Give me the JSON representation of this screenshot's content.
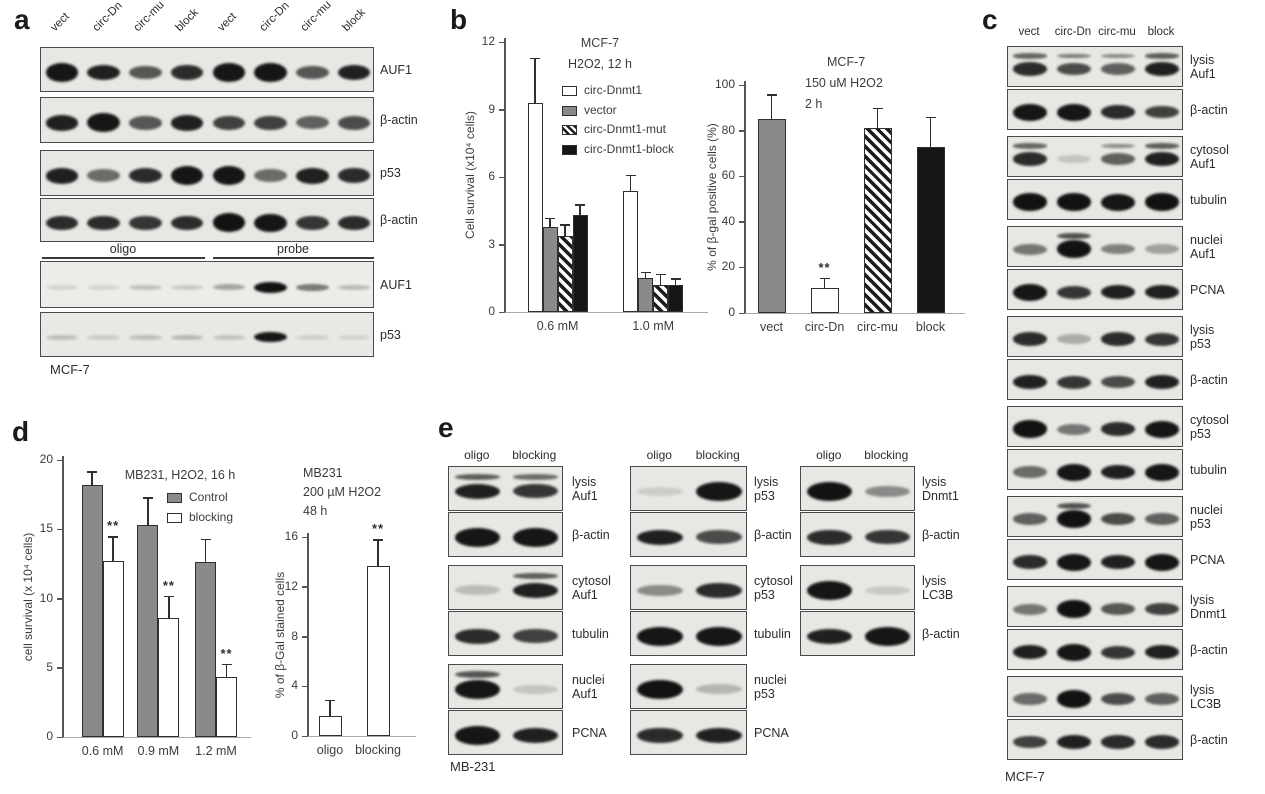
{
  "colors": {
    "blot_bg": "#e8e7e3",
    "blot_bg_light": "#edece8",
    "band": "#121212",
    "bar_gray": "#8a8a8a",
    "bar_black": "#161616",
    "axis": "#555555",
    "text": "#3b3b3b"
  },
  "panels": {
    "a": {
      "letter": "a",
      "lane_labels": [
        "vect",
        "circ-Dn",
        "circ-mu",
        "block",
        "vect",
        "circ-Dn",
        "circ-mu",
        "block"
      ],
      "blots": [
        {
          "label": "AUF1",
          "bands": [
            0.9,
            0.85,
            0.6,
            0.8,
            0.9,
            0.9,
            0.6,
            0.85
          ]
        },
        {
          "label": "β-actin",
          "bands": [
            0.85,
            0.9,
            0.6,
            0.85,
            0.7,
            0.7,
            0.55,
            0.65
          ]
        },
        {
          "label": "p53",
          "bands": [
            0.85,
            0.5,
            0.8,
            0.9,
            0.9,
            0.5,
            0.85,
            0.8
          ]
        },
        {
          "label": "β-actin",
          "bands": [
            0.8,
            0.8,
            0.75,
            0.8,
            0.95,
            0.9,
            0.75,
            0.8
          ]
        }
      ],
      "group_labels": [
        "oligo",
        "probe"
      ],
      "pulldown_blots": [
        {
          "label": "AUF1",
          "bands": [
            0.03,
            0.03,
            0.12,
            0.08,
            0.25,
            0.95,
            0.45,
            0.15
          ],
          "thin": true,
          "bg": "#edece8"
        },
        {
          "label": "p53",
          "bands": [
            0.12,
            0.06,
            0.12,
            0.15,
            0.1,
            0.9,
            0.04,
            0.02
          ],
          "thin": true,
          "bg": "#eae8e4"
        }
      ],
      "cell_line": "MCF-7"
    },
    "b": {
      "letter": "b"
    },
    "c": {
      "letter": "c",
      "lane_labels": [
        "vect",
        "circ-Dn",
        "circ-mu",
        "block"
      ],
      "blots": [
        {
          "label_lines": [
            "lysis",
            "Auf1"
          ],
          "bands": [
            0.8,
            0.65,
            0.55,
            0.85
          ],
          "doublet": true
        },
        {
          "label_lines": [
            "β-actin"
          ],
          "bands": [
            0.9,
            0.9,
            0.8,
            0.7
          ]
        },
        {
          "label_lines": [
            "cytosol",
            "Auf1"
          ],
          "bands": [
            0.8,
            0.08,
            0.55,
            0.85
          ],
          "doublet": [
            0,
            2,
            3
          ]
        },
        {
          "label_lines": [
            "tubulin"
          ],
          "bands": [
            0.95,
            0.95,
            0.9,
            0.95
          ]
        },
        {
          "label_lines": [
            "nuclei",
            "Auf1"
          ],
          "bands": [
            0.45,
            0.95,
            0.4,
            0.25
          ],
          "doublet": [
            1
          ]
        },
        {
          "label_lines": [
            "PCNA"
          ],
          "bands": [
            0.9,
            0.75,
            0.85,
            0.85
          ]
        },
        {
          "label_lines": [
            "lysis",
            "p53"
          ],
          "bands": [
            0.8,
            0.2,
            0.8,
            0.75
          ]
        },
        {
          "label_lines": [
            "β-actin"
          ],
          "bands": [
            0.85,
            0.75,
            0.65,
            0.85
          ]
        },
        {
          "label_lines": [
            "cytosol",
            "p53"
          ],
          "bands": [
            0.95,
            0.45,
            0.8,
            0.9
          ]
        },
        {
          "label_lines": [
            "tubulin"
          ],
          "bands": [
            0.5,
            0.9,
            0.85,
            0.9
          ]
        },
        {
          "label_lines": [
            "nuclei",
            "p53"
          ],
          "bands": [
            0.55,
            0.95,
            0.65,
            0.55
          ],
          "doublet": [
            1
          ]
        },
        {
          "label_lines": [
            "PCNA"
          ],
          "bands": [
            0.8,
            0.9,
            0.85,
            0.9
          ]
        },
        {
          "label_lines": [
            "lysis",
            "Dnmt1"
          ],
          "bands": [
            0.45,
            0.95,
            0.6,
            0.7
          ]
        },
        {
          "label_lines": [
            "β-actin"
          ],
          "bands": [
            0.85,
            0.9,
            0.75,
            0.85
          ]
        },
        {
          "label_lines": [
            "lysis",
            "LC3B"
          ],
          "bands": [
            0.5,
            0.95,
            0.65,
            0.55
          ]
        },
        {
          "label_lines": [
            "β-actin"
          ],
          "bands": [
            0.7,
            0.85,
            0.8,
            0.8
          ]
        }
      ],
      "cell_line": "MCF-7"
    },
    "d": {
      "letter": "d"
    },
    "e": {
      "letter": "e",
      "columns": [
        {
          "lane_labels": [
            "oligo",
            "blocking"
          ],
          "cell_line": "MB-231",
          "blots": [
            {
              "label_lines": [
                "lysis",
                "Auf1"
              ],
              "bands": [
                0.85,
                0.75
              ],
              "doublet": true
            },
            {
              "label_lines": [
                "β-actin"
              ],
              "bands": [
                0.9,
                0.9
              ]
            },
            {
              "label_lines": [
                "cytosol",
                "Auf1"
              ],
              "bands": [
                0.12,
                0.85
              ],
              "doublet": [
                1
              ]
            },
            {
              "label_lines": [
                "tubulin"
              ],
              "bands": [
                0.8,
                0.7
              ]
            },
            {
              "label_lines": [
                "nuclei",
                "Auf1"
              ],
              "bands": [
                0.9,
                0.08
              ],
              "doublet": [
                0
              ]
            },
            {
              "label_lines": [
                "PCNA"
              ],
              "bands": [
                0.9,
                0.85
              ]
            }
          ]
        },
        {
          "lane_labels": [
            "oligo",
            "blocking"
          ],
          "blots": [
            {
              "label_lines": [
                "lysis",
                "p53"
              ],
              "bands": [
                0.04,
                0.9
              ]
            },
            {
              "label_lines": [
                "β-actin"
              ],
              "bands": [
                0.85,
                0.65
              ]
            },
            {
              "label_lines": [
                "cytosol",
                "p53"
              ],
              "bands": [
                0.35,
                0.8
              ]
            },
            {
              "label_lines": [
                "tubulin"
              ],
              "bands": [
                0.9,
                0.9
              ]
            },
            {
              "label_lines": [
                "nuclei",
                "p53"
              ],
              "bands": [
                0.95,
                0.15
              ]
            },
            {
              "label_lines": [
                "PCNA"
              ],
              "bands": [
                0.8,
                0.85
              ]
            }
          ]
        },
        {
          "lane_labels": [
            "oligo",
            "blocking"
          ],
          "blots": [
            {
              "label_lines": [
                "lysis",
                "Dnmt1"
              ],
              "bands": [
                0.95,
                0.35
              ]
            },
            {
              "label_lines": [
                "β-actin"
              ],
              "bands": [
                0.8,
                0.75
              ]
            },
            {
              "label_lines": [
                "lysis",
                "LC3B"
              ],
              "bands": [
                0.9,
                0.06
              ]
            },
            {
              "label_lines": [
                "β-actin"
              ],
              "bands": [
                0.85,
                0.9
              ]
            }
          ]
        }
      ]
    }
  },
  "chart_data": [
    {
      "id": "b-left",
      "type": "bar",
      "title_lines": [
        "MCF-7",
        "H2O2, 12 h"
      ],
      "ylabel": "Cell survival (x10⁴ cells)",
      "ylim": [
        0,
        12
      ],
      "yticks": [
        0,
        3,
        6,
        9,
        12
      ],
      "categories": [
        "0.6 mM",
        "1.0 mM"
      ],
      "series": [
        {
          "name": "circ-Dnmt1",
          "style": "white",
          "values": [
            9.3,
            5.4
          ],
          "errors": [
            2.0,
            0.7
          ]
        },
        {
          "name": "vector",
          "style": "gray",
          "values": [
            3.8,
            1.5
          ],
          "errors": [
            0.4,
            0.3
          ]
        },
        {
          "name": "circ-Dnmt1-mut",
          "style": "hatch",
          "values": [
            3.4,
            1.2
          ],
          "errors": [
            0.5,
            0.5
          ]
        },
        {
          "name": "circ-Dnmt1-block",
          "style": "black",
          "values": [
            4.3,
            1.2
          ],
          "errors": [
            0.5,
            0.3
          ]
        }
      ],
      "legend": true
    },
    {
      "id": "b-right",
      "type": "bar",
      "title_lines": [
        "MCF-7",
        "150 uM H2O2",
        "2 h"
      ],
      "ylabel": "% of β-gal  positive cells (%)",
      "ylim": [
        0,
        100
      ],
      "yticks": [
        0,
        20,
        40,
        60,
        80,
        100
      ],
      "categories": [
        "vect",
        "circ-Dn",
        "circ-mu",
        "block"
      ],
      "values": [
        85,
        11,
        81,
        73
      ],
      "errors": [
        11,
        4.5,
        9,
        13
      ],
      "bar_styles": [
        "gray",
        "white",
        "hatch",
        "black"
      ],
      "sig_labels": [
        "",
        "**",
        "",
        ""
      ]
    },
    {
      "id": "d-left",
      "type": "bar",
      "title_lines": [
        "MB231, H2O2, 16 h"
      ],
      "ylabel": "cell survival (x 10⁴ cells)",
      "ylim": [
        0,
        20
      ],
      "yticks": [
        0,
        5,
        10,
        15,
        20
      ],
      "categories": [
        "0.6 mM",
        "0.9 mM",
        "1.2 mM"
      ],
      "series": [
        {
          "name": "Control",
          "style": "gray",
          "values": [
            18.2,
            15.3,
            12.6
          ],
          "errors": [
            1.0,
            2.0,
            1.7
          ],
          "sig": [
            "",
            "",
            ""
          ]
        },
        {
          "name": "blocking",
          "style": "white",
          "values": [
            12.7,
            8.6,
            4.3
          ],
          "errors": [
            1.8,
            1.6,
            1.0
          ],
          "sig": [
            "**",
            "**",
            "**"
          ]
        }
      ],
      "legend": true
    },
    {
      "id": "d-right",
      "type": "bar",
      "title_lines": [
        "MB231",
        "200 µM H2O2",
        "48 h"
      ],
      "ylabel": "% of β-Gal stained cells",
      "ylim": [
        0,
        16
      ],
      "yticks": [
        0,
        4,
        8,
        12,
        16
      ],
      "categories": [
        "oligo",
        "blocking"
      ],
      "values": [
        1.6,
        13.7
      ],
      "errors": [
        1.3,
        2.1
      ],
      "bar_styles": [
        "white",
        "white"
      ],
      "sig_labels": [
        "",
        "**"
      ]
    }
  ]
}
